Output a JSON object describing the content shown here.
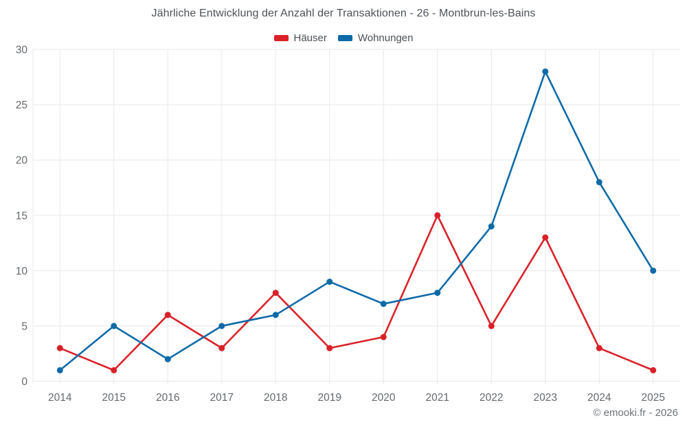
{
  "title": "Jährliche Entwicklung der Anzahl der Transaktionen - 26 - Montbrun-les-Bains",
  "footer": "© emooki.fr - 2026",
  "colors": {
    "haeuser": "#da2128",
    "wohnungen": "#0e6aa8",
    "grid": "#e8e8e8",
    "axis_text": "#65696e",
    "title_text": "#4d5257",
    "legend_text": "#4b5055",
    "footer_text": "#6c7176",
    "background": "#ffffff"
  },
  "chart_data": {
    "type": "line",
    "title": "Jährliche Entwicklung der Anzahl der Transaktionen - 26 - Montbrun-les-Bains",
    "categories": [
      "2014",
      "2015",
      "2016",
      "2017",
      "2018",
      "2019",
      "2020",
      "2021",
      "2022",
      "2023",
      "2024",
      "2025"
    ],
    "series": [
      {
        "name": "Häuser",
        "color": "#da2128",
        "values": [
          3,
          1,
          6,
          3,
          8,
          3,
          4,
          15,
          5,
          13,
          3,
          1
        ]
      },
      {
        "name": "Wohnungen",
        "color": "#0e6aa8",
        "values": [
          1,
          5,
          2,
          5,
          6,
          9,
          7,
          8,
          14,
          28,
          18,
          10
        ]
      }
    ],
    "xlabel": "",
    "ylabel": "",
    "ylim": [
      0,
      30
    ],
    "yticks": [
      0,
      5,
      10,
      15,
      20,
      25,
      30
    ],
    "grid": true,
    "legend_position": "top",
    "markers": true
  }
}
